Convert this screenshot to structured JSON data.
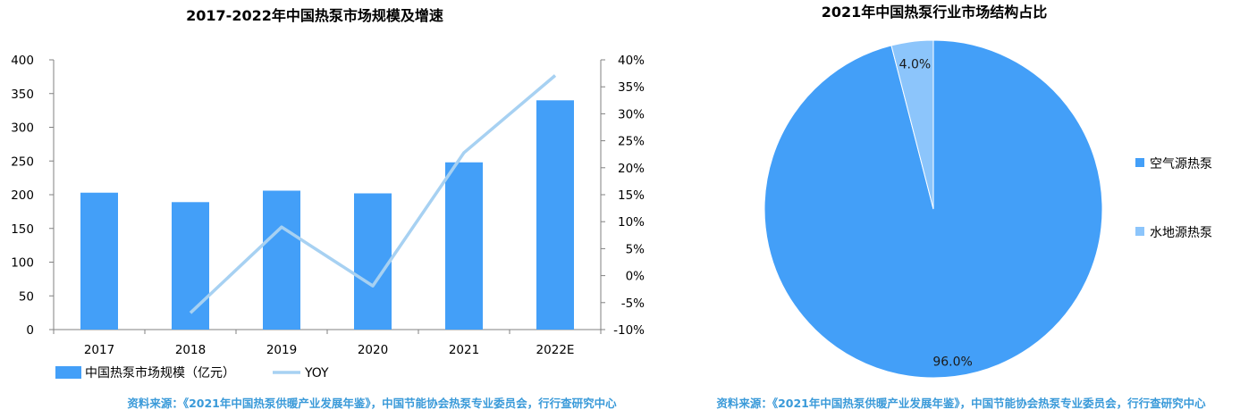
{
  "chart_data": [
    {
      "type": "bar",
      "title": "2017-2022年中国热泵市场规模及增速",
      "categories": [
        "2017",
        "2018",
        "2019",
        "2020",
        "2021",
        "2022E"
      ],
      "series": [
        {
          "name": "中国热泵市场规模（亿元）",
          "type": "bar",
          "axis": "left",
          "color": "#439ff8",
          "values": [
            203,
            189,
            206,
            202,
            248,
            340
          ]
        },
        {
          "name": "YOY",
          "type": "line",
          "axis": "right",
          "color": "#a7d1f2",
          "values": [
            null,
            -6.9,
            9.0,
            -1.9,
            22.8,
            37.1
          ]
        }
      ],
      "y_left": {
        "ylim": [
          0,
          400
        ],
        "ticks": [
          "0",
          "50",
          "100",
          "150",
          "200",
          "250",
          "300",
          "350",
          "400"
        ]
      },
      "y_right": {
        "ylim": [
          -10,
          40
        ],
        "ticks": [
          "-10%",
          "-5%",
          "0%",
          "5%",
          "10%",
          "15%",
          "20%",
          "25%",
          "30%",
          "35%",
          "40%"
        ]
      },
      "legend": "bottom-left",
      "grid": false,
      "source": "资料来源：《2021年中国热泵供暖产业发展年鉴》，中国节能协会热泵专业委员会，行行查研究中心"
    },
    {
      "type": "pie",
      "title": "2021年中国热泵行业市场结构占比",
      "slices": [
        {
          "label": "空气源热泵",
          "value": 96.0,
          "display": "96.0%",
          "color": "#439ff8"
        },
        {
          "label": "水地源热泵",
          "value": 4.0,
          "display": "4.0%",
          "color": "#8cc5fb"
        }
      ],
      "legend": "right",
      "source": "资料来源：《2021年中国热泵供暖产业发展年鉴》，中国节能协会热泵专业委员会，行行查研究中心"
    }
  ]
}
